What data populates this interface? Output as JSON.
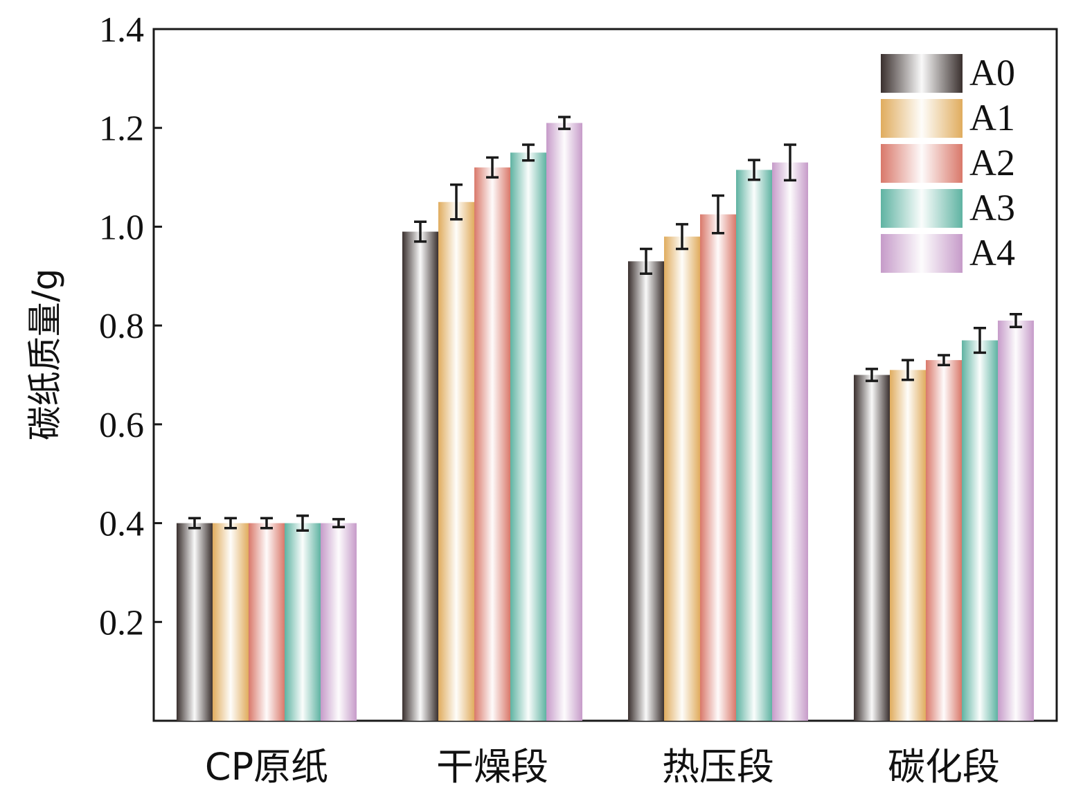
{
  "chart_data": {
    "type": "bar",
    "title": "",
    "xlabel": "",
    "ylabel": "碳纸质量/g",
    "ylim": [
      0,
      1.4
    ],
    "yticks": [
      "0.2",
      "0.4",
      "0.6",
      "0.8",
      "1.0",
      "1.2",
      "1.4"
    ],
    "categories": [
      "CP原纸",
      "干燥段",
      "热压段",
      "碳化段"
    ],
    "legend_position": "top-right",
    "grid": false,
    "series": [
      {
        "name": "A0",
        "color": "#3a302e",
        "values": [
          0.4,
          0.99,
          0.93,
          0.7
        ],
        "errors": [
          0.01,
          0.02,
          0.025,
          0.012
        ]
      },
      {
        "name": "A1",
        "color": "#e0ac5e",
        "values": [
          0.4,
          1.05,
          0.98,
          0.71
        ],
        "errors": [
          0.01,
          0.035,
          0.025,
          0.02
        ]
      },
      {
        "name": "A2",
        "color": "#d9786a",
        "values": [
          0.4,
          1.12,
          1.025,
          0.73
        ],
        "errors": [
          0.01,
          0.02,
          0.038,
          0.01
        ]
      },
      {
        "name": "A3",
        "color": "#5fb3a2",
        "values": [
          0.4,
          1.15,
          1.115,
          0.77
        ],
        "errors": [
          0.015,
          0.016,
          0.02,
          0.025
        ]
      },
      {
        "name": "A4",
        "color": "#c69bc9",
        "values": [
          0.4,
          1.21,
          1.13,
          0.81
        ],
        "errors": [
          0.008,
          0.012,
          0.036,
          0.013
        ]
      }
    ]
  }
}
